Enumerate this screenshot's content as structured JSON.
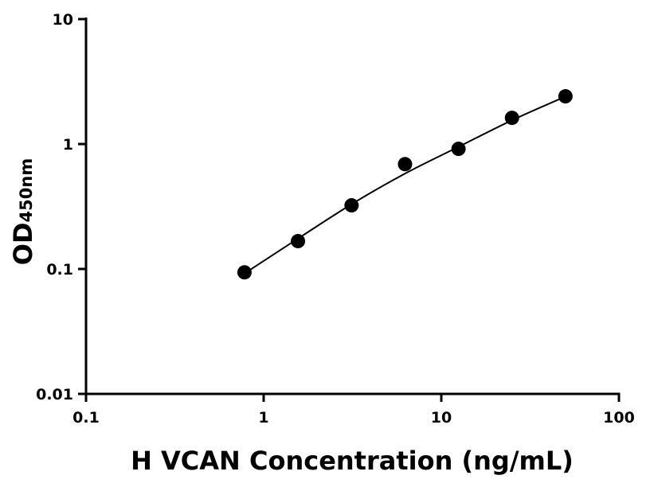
{
  "chart_data": {
    "type": "scatter",
    "x_label": "H VCAN Concentration (ng/mL)",
    "y_label": "OD",
    "y_label_sub": "450nm",
    "x": [
      0.78,
      1.56,
      3.125,
      6.25,
      12.5,
      25,
      50
    ],
    "series": [
      {
        "color": "#000000",
        "values": [
          0.094,
          0.167,
          0.323,
          0.69,
          0.915,
          1.62,
          2.41
        ]
      }
    ],
    "fit": {
      "color": "#000000",
      "x": [
        0.78,
        1.56,
        3.125,
        6.25,
        12.5,
        25,
        50
      ],
      "y": [
        0.092,
        0.175,
        0.33,
        0.58,
        0.95,
        1.55,
        2.4
      ]
    },
    "xlog": true,
    "ylog": true,
    "xlim": [
      0.1,
      100
    ],
    "ylim": [
      0.01,
      10
    ],
    "xticks": [
      0.1,
      1,
      10,
      100
    ],
    "yticks": [
      0.01,
      0.1,
      1,
      10
    ]
  }
}
